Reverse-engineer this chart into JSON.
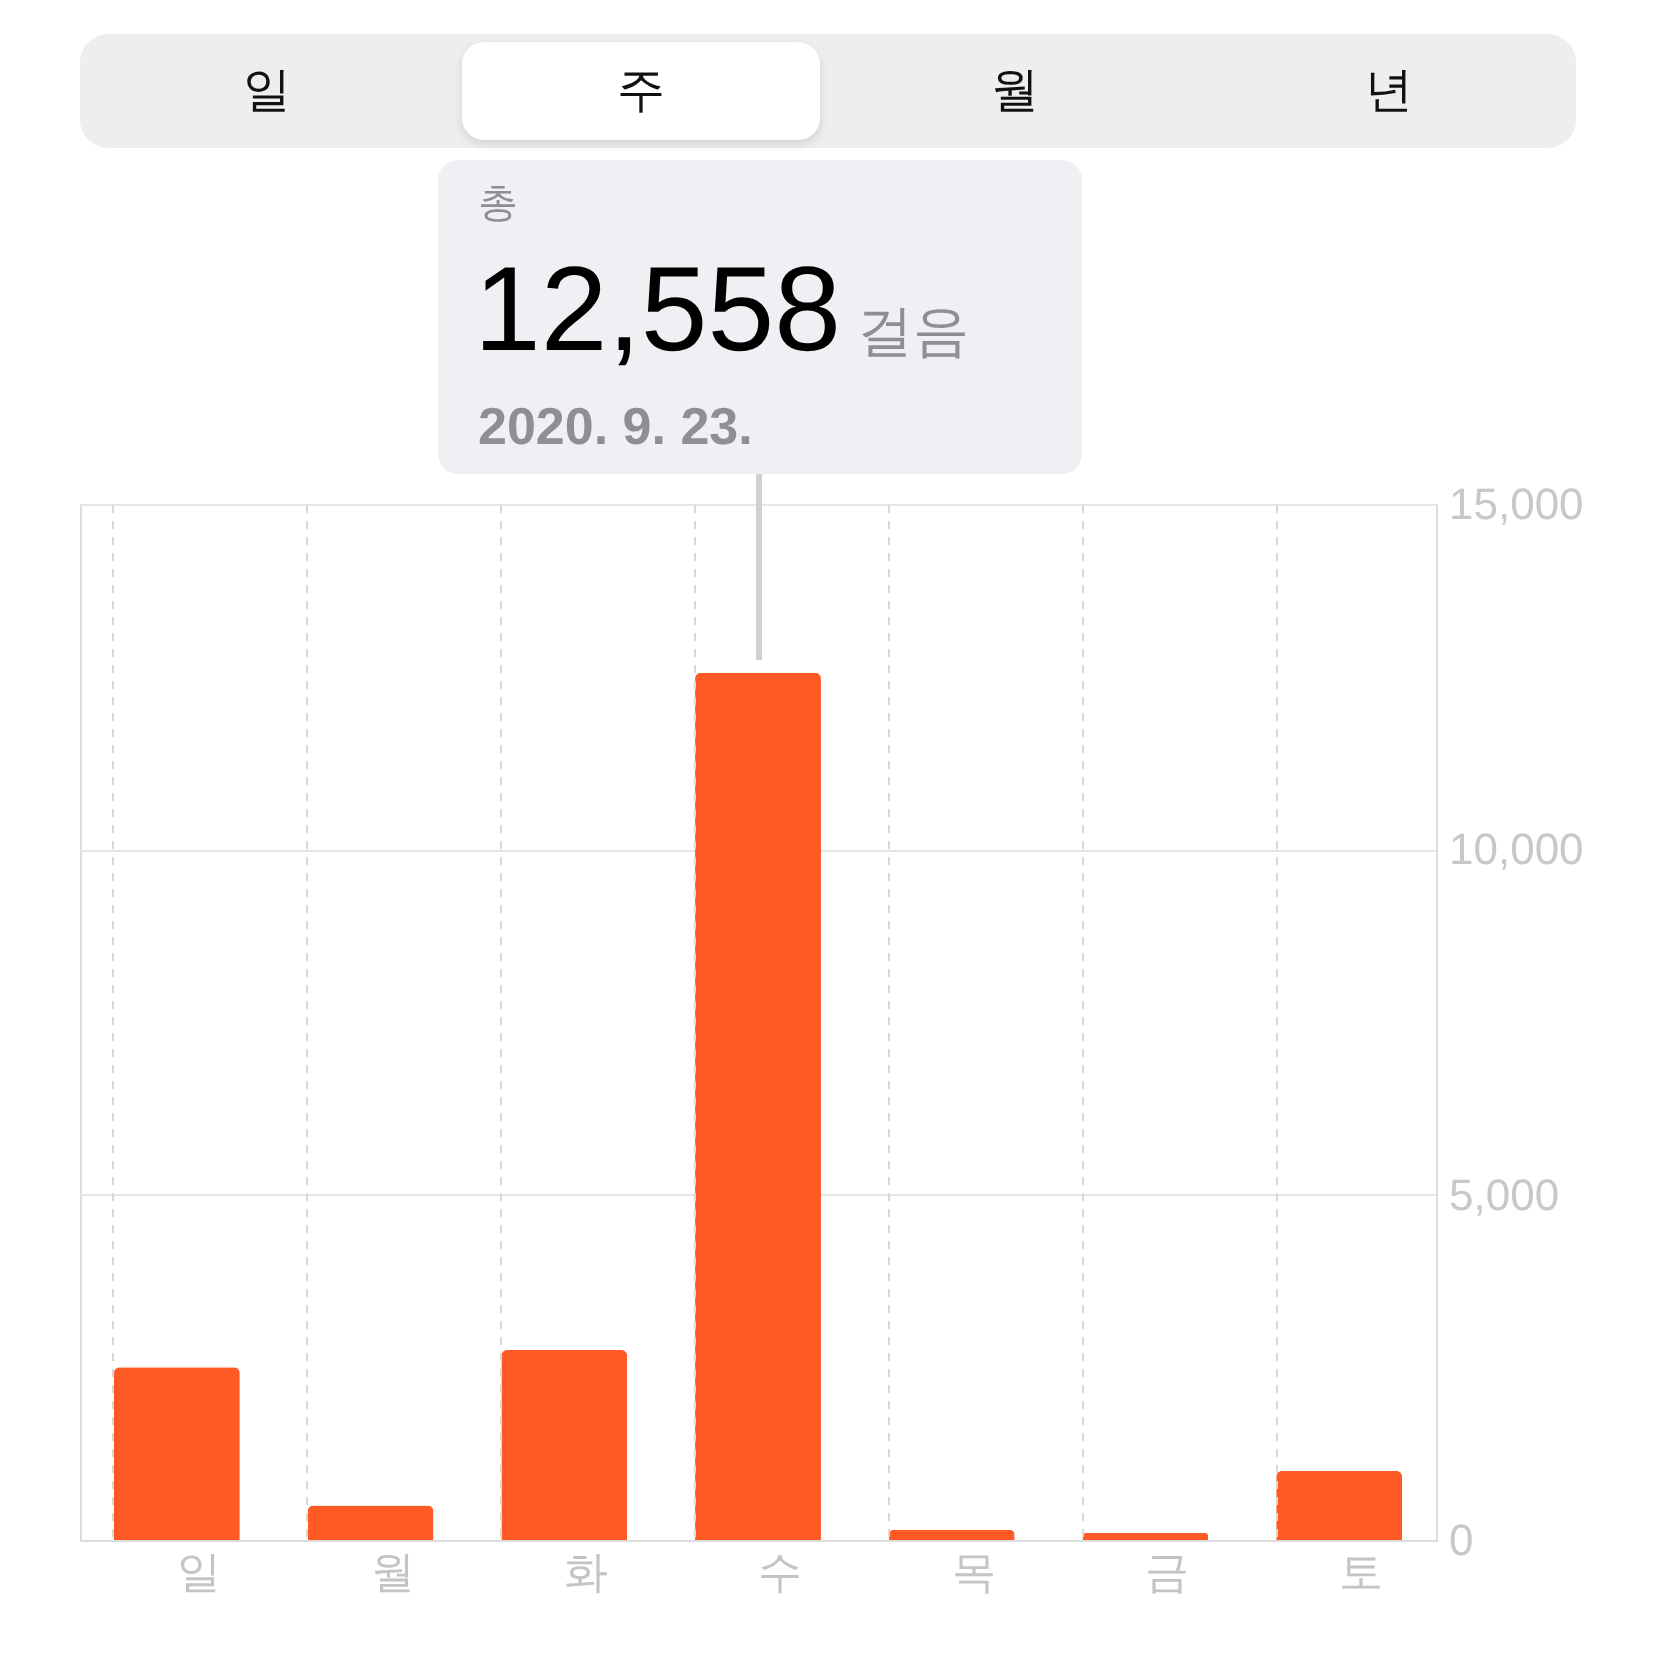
{
  "chart_data": {
    "type": "bar",
    "annotations": [
      "일",
      "주",
      "월",
      "년",
      "총",
      {
        "text": "12,558",
        "x": "수",
        "y": 12558
      },
      "걸음",
      "2020. 9. 23."
    ],
    "categories": [
      "일",
      "월",
      "화",
      "수",
      "목",
      "금",
      "토"
    ],
    "values": [
      2500,
      500,
      2750,
      12558,
      150,
      100,
      1000
    ],
    "color": "#ff5a23",
    "ylim": [
      0,
      15000
    ],
    "yticks": [
      0,
      {
        "value": 5000,
        "label": "5,000"
      },
      {
        "value": 10000,
        "label": "10,000"
      },
      {
        "value": 15000,
        "label": "15,000"
      }
    ],
    "grid": true
  }
}
